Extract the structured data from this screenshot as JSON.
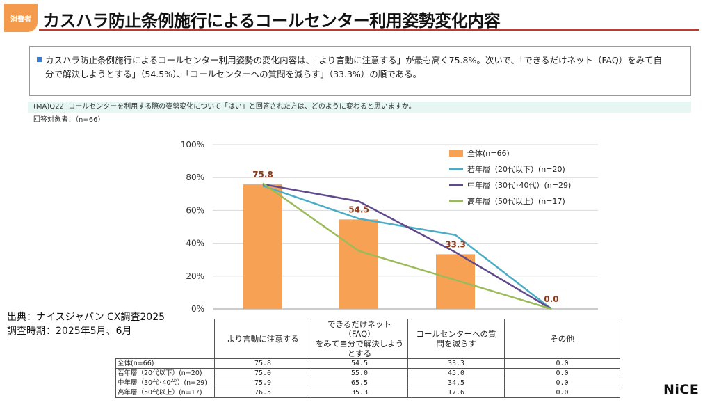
{
  "header": {
    "badge": "消費者",
    "title": "カスハラ防止条例施行によるコールセンター利用姿勢変化内容"
  },
  "summary": {
    "line1": "カスハラ防止条例施行によるコールセンター利用姿勢の変化内容は、「より言動に注意する」が最も高く75.8%。次いで、「できるだけネット（FAQ）をみて自",
    "line2": "分で解決しようとする」（54.5%）、「コールセンターへの質問を減らす」（33.3%）の順である。"
  },
  "question": "(MA)Q22. コールセンターを利用する際の姿勢変化について「はい」と回答された方は、どのように変わると思いますか。",
  "target": "回答対象者：（n=66）",
  "source": {
    "line1": "出典：ナイスジャパン CX調査2025",
    "line2": "調査時期：2025年5月、6月"
  },
  "logo": "NiCE",
  "colors": {
    "bar": "#f7a155",
    "young": "#4bacc6",
    "middle": "#604a8b",
    "senior": "#9bbb59",
    "label": "#8a3c1c"
  },
  "chart_data": {
    "type": "bar",
    "categories": [
      "より言動に注意する",
      "できるだけネット（FAQ）をみて自分で解決しようとする",
      "コールセンターへの質問を減らす",
      "その他"
    ],
    "category_labels": [
      [
        "より言動に注意する"
      ],
      [
        "できるだけネット（FAQ）",
        "をみて自分で解決しよう",
        "とする"
      ],
      [
        "コールセンターへの質",
        "問を減らす"
      ],
      [
        "その他"
      ]
    ],
    "ylim": [
      0,
      100
    ],
    "yticks": [
      0,
      20,
      40,
      60,
      80,
      100
    ],
    "ytick_labels": [
      "0%",
      "20%",
      "40%",
      "60%",
      "80%",
      "100%"
    ],
    "grid": true,
    "legend_position": "top-right",
    "series": [
      {
        "name": "全体(n=66)",
        "type": "bar",
        "values": [
          75.8,
          54.5,
          33.3,
          0.0
        ],
        "data_labels": [
          "75.8",
          "54.5",
          "33.3",
          "0.0"
        ]
      },
      {
        "name": "若年層（20代以下）(n=20)",
        "type": "line",
        "values": [
          75.0,
          55.0,
          45.0,
          0.0
        ]
      },
      {
        "name": "中年層（30代･40代）(n=29)",
        "type": "line",
        "values": [
          75.9,
          65.5,
          34.5,
          0.0
        ]
      },
      {
        "name": "高年層（50代以上）(n=17)",
        "type": "line",
        "values": [
          76.5,
          35.3,
          17.6,
          0.0
        ]
      }
    ]
  },
  "table": {
    "headers": [
      "より言動に注意する",
      "できるだけネット（FAQ）をみて自分で解決しようとする",
      "コールセンターへの質問を減らす",
      "その他"
    ],
    "header_lines": [
      [
        "より言動に注意する"
      ],
      [
        "できるだけネット（FAQ）",
        "をみて自分で解決しよう",
        "とする"
      ],
      [
        "コールセンターへの質",
        "問を減らす"
      ],
      [
        "その他"
      ]
    ],
    "rows": [
      {
        "label": "全体(n=66)",
        "values": [
          "75.8",
          "54.5",
          "33.3",
          "0.0"
        ]
      },
      {
        "label": "若年層（20代以下）(n=20)",
        "values": [
          "75.0",
          "55.0",
          "45.0",
          "0.0"
        ]
      },
      {
        "label": "中年層（30代･40代）(n=29)",
        "values": [
          "75.9",
          "65.5",
          "34.5",
          "0.0"
        ]
      },
      {
        "label": "高年層（50代以上）(n=17)",
        "values": [
          "76.5",
          "35.3",
          "17.6",
          "0.0"
        ]
      }
    ]
  }
}
